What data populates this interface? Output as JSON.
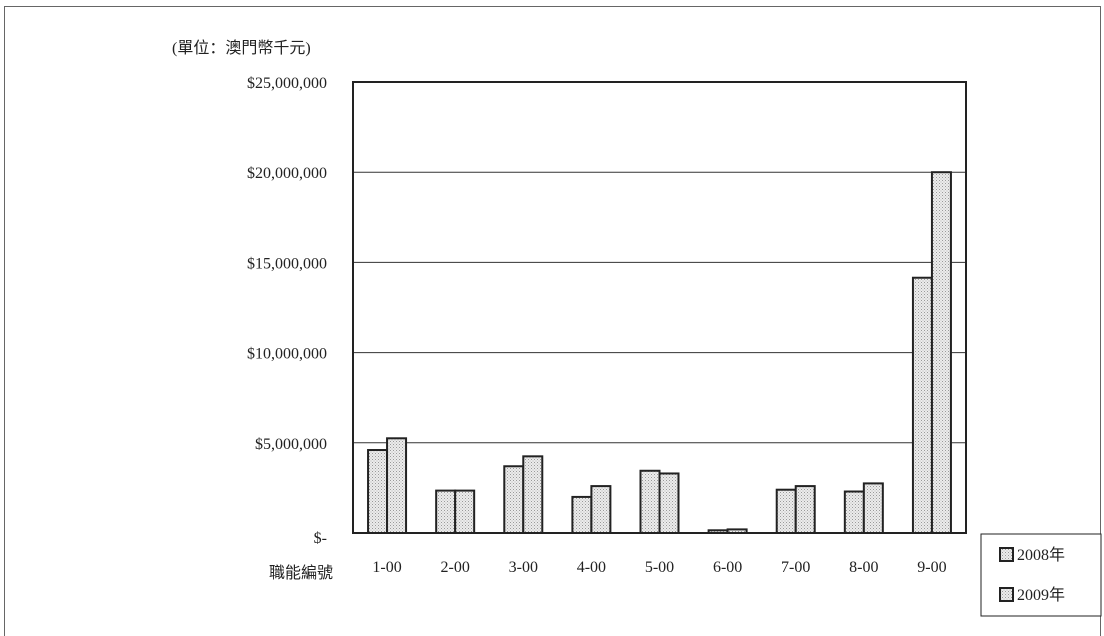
{
  "chart_data": {
    "type": "bar",
    "unit_label": "(單位：澳門幣千元)",
    "xlabel": "職能編號",
    "ylabel": "",
    "ylim": [
      0,
      25000000
    ],
    "y_ticks": [
      {
        "value": 0,
        "label": "$-"
      },
      {
        "value": 5000000,
        "label": "$5,000,000"
      },
      {
        "value": 10000000,
        "label": "$10,000,000"
      },
      {
        "value": 15000000,
        "label": "$15,000,000"
      },
      {
        "value": 20000000,
        "label": "$20,000,000"
      },
      {
        "value": 25000000,
        "label": "$25,000,000"
      }
    ],
    "grid": true,
    "legend_position": "bottom-right",
    "categories": [
      "1-00",
      "2-00",
      "3-00",
      "4-00",
      "5-00",
      "6-00",
      "7-00",
      "8-00",
      "9-00"
    ],
    "series": [
      {
        "name": "2008年",
        "fill": "#dcdcdc",
        "values": [
          4600000,
          2350000,
          3700000,
          2000000,
          3450000,
          150000,
          2400000,
          2300000,
          14150000
        ]
      },
      {
        "name": "2009年",
        "fill": "#f4f4f4",
        "values": [
          5250000,
          2350000,
          4250000,
          2600000,
          3300000,
          200000,
          2600000,
          2750000,
          20000000
        ]
      }
    ]
  }
}
